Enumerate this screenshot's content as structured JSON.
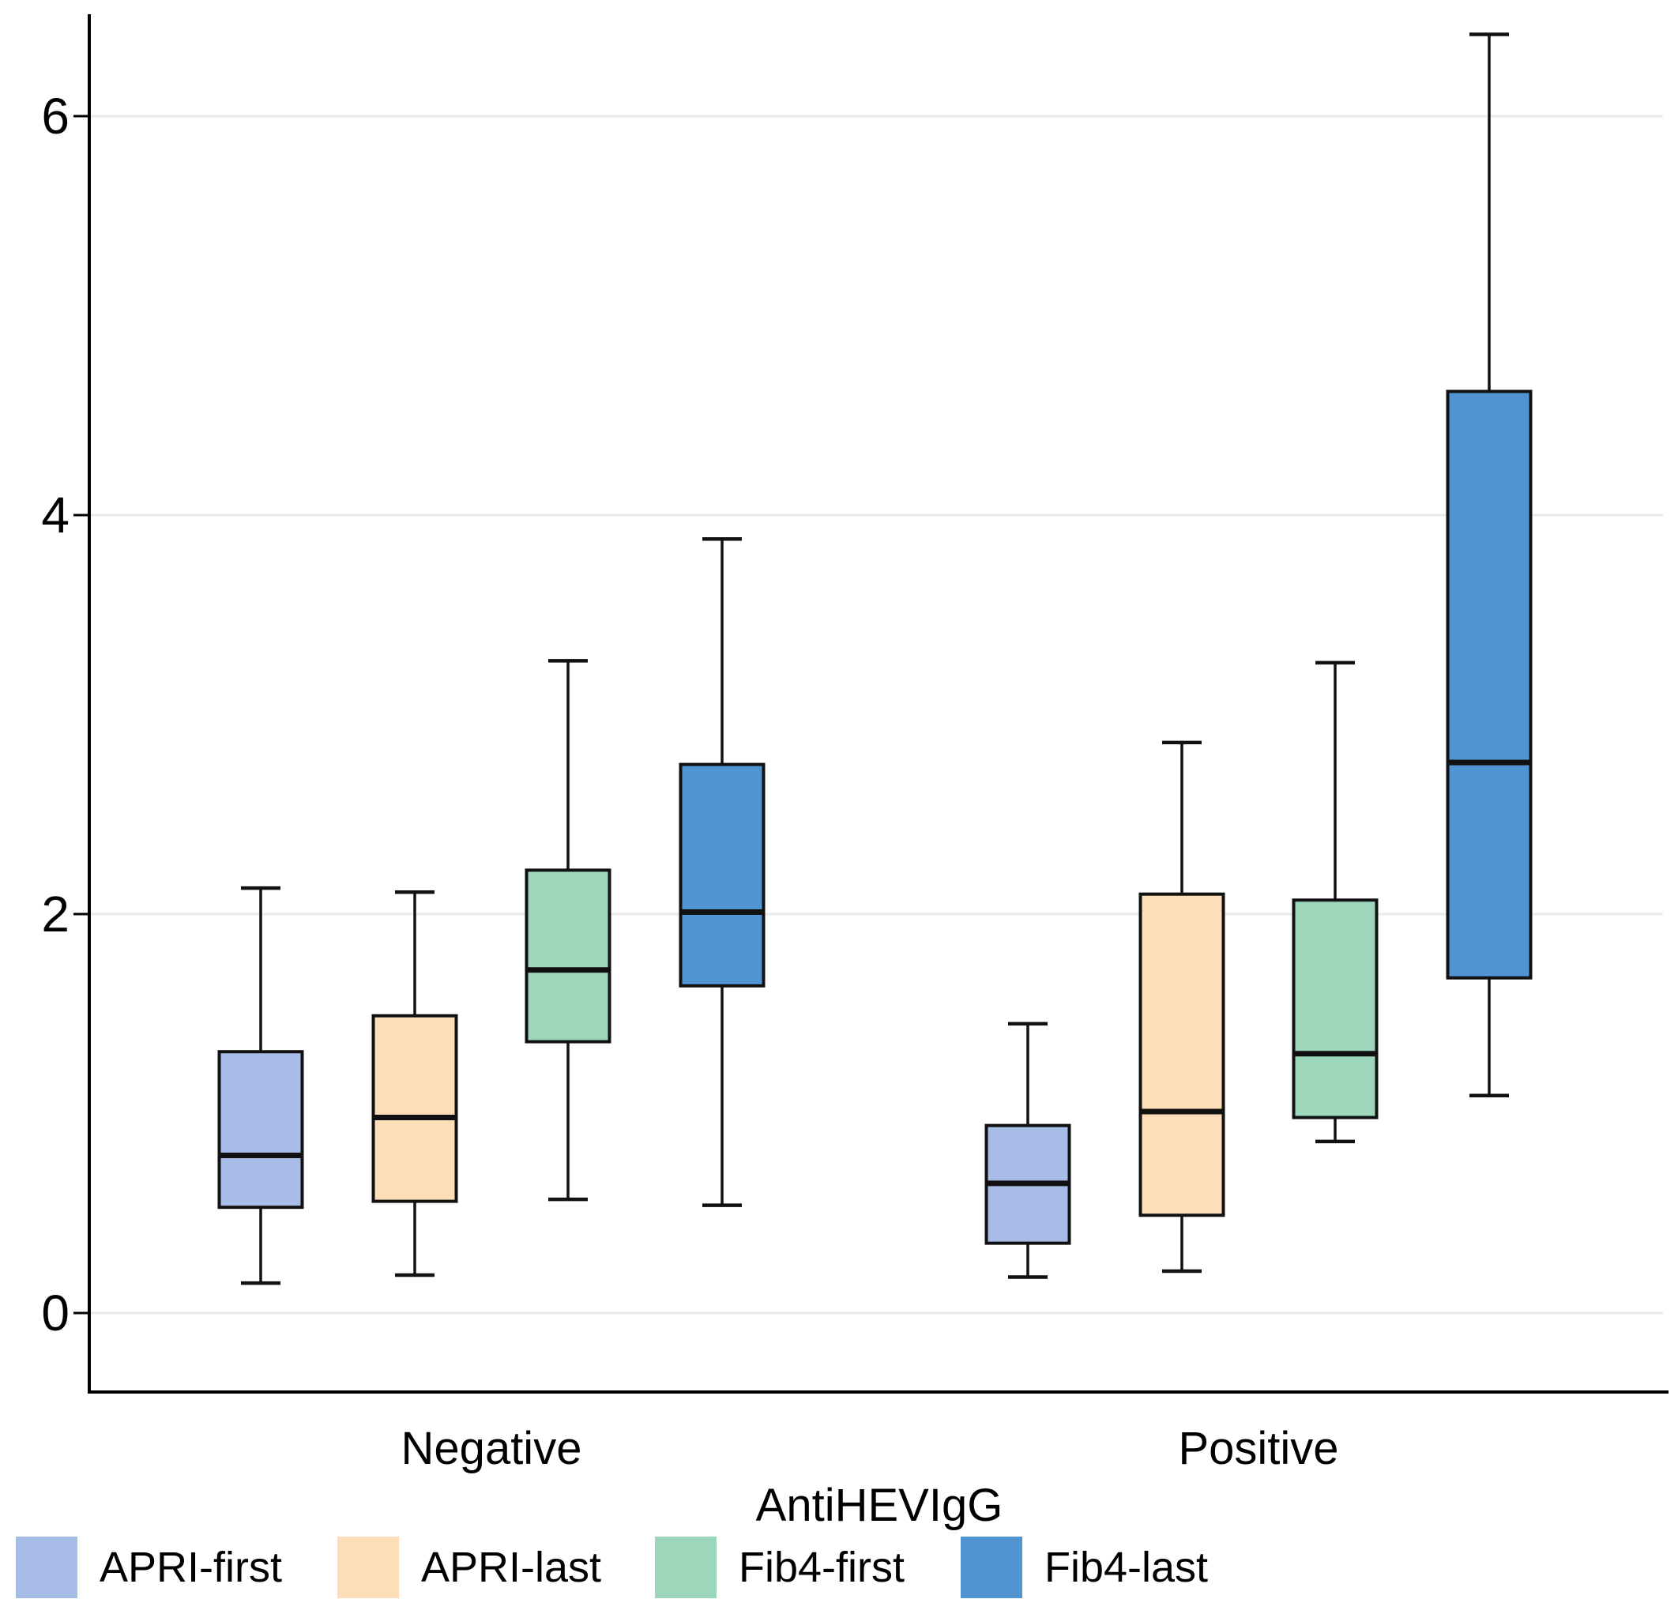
{
  "chart_data": {
    "type": "box",
    "title": "",
    "xlabel": "AntiHEVIgG",
    "ylabel": "",
    "categories": [
      "Negative",
      "Positive"
    ],
    "y_axis": {
      "ticks": [
        0,
        2,
        4,
        6
      ],
      "range": [
        -0.4,
        6.5
      ],
      "gridlines": true
    },
    "series": [
      {
        "name": "APRI-first",
        "color": "#a8bce8",
        "boxes": [
          {
            "category": "Negative",
            "min": 0.15,
            "q1": 0.53,
            "median": 0.79,
            "q3": 1.31,
            "max": 2.13
          },
          {
            "category": "Positive",
            "min": 0.18,
            "q1": 0.35,
            "median": 0.65,
            "q3": 0.94,
            "max": 1.45
          }
        ]
      },
      {
        "name": "APRI-last",
        "color": "#fcdeb9",
        "boxes": [
          {
            "category": "Negative",
            "min": 0.19,
            "q1": 0.56,
            "median": 0.98,
            "q3": 1.49,
            "max": 2.11
          },
          {
            "category": "Positive",
            "min": 0.21,
            "q1": 0.49,
            "median": 1.01,
            "q3": 2.1,
            "max": 2.86
          }
        ]
      },
      {
        "name": "Fib4-first",
        "color": "#9cd6bb",
        "boxes": [
          {
            "category": "Negative",
            "min": 0.57,
            "q1": 1.36,
            "median": 1.72,
            "q3": 2.22,
            "max": 3.27
          },
          {
            "category": "Positive",
            "min": 0.86,
            "q1": 0.98,
            "median": 1.3,
            "q3": 2.07,
            "max": 3.26
          }
        ]
      },
      {
        "name": "Fib4-last",
        "color": "#5095d1",
        "boxes": [
          {
            "category": "Negative",
            "min": 0.54,
            "q1": 1.64,
            "median": 2.01,
            "q3": 2.75,
            "max": 3.88
          },
          {
            "category": "Positive",
            "min": 1.09,
            "q1": 1.68,
            "median": 2.76,
            "q3": 4.62,
            "max": 6.41
          }
        ]
      }
    ],
    "legend": {
      "position": "bottom-left",
      "entries": [
        {
          "label": "APRI-first",
          "color": "#a8bce8"
        },
        {
          "label": "APRI-last",
          "color": "#fcdeb9"
        },
        {
          "label": "Fib4-first",
          "color": "#9cd6bb"
        },
        {
          "label": "Fib4-last",
          "color": "#5095d1"
        }
      ]
    },
    "style": {
      "background": "#ffffff",
      "grid_color": "#ebebeb",
      "axis_color": "#000000",
      "box_border_color": "#111111",
      "text_color": "#000000"
    }
  }
}
